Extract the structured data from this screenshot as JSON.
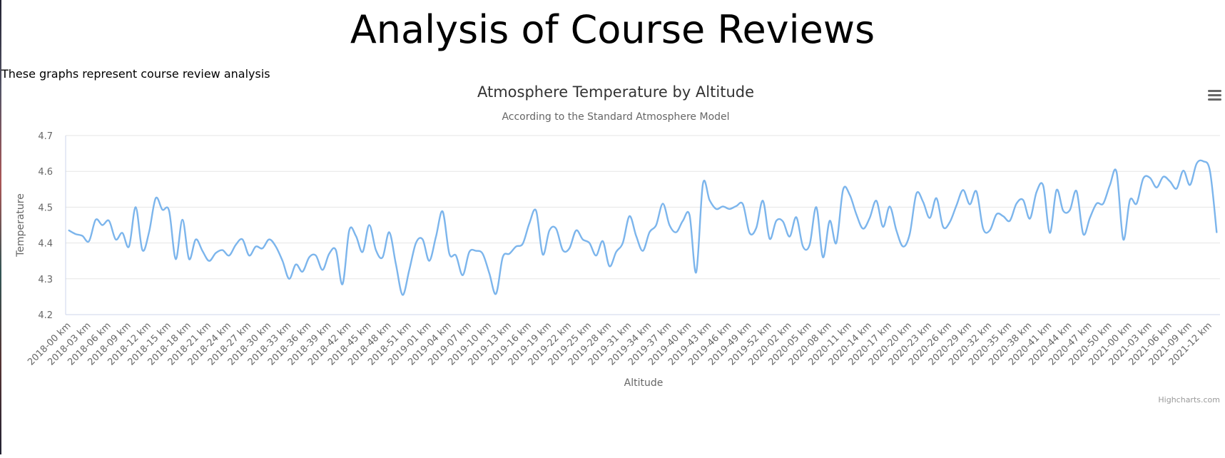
{
  "page": {
    "title": "Analysis of Course Reviews",
    "intro": "These graphs represent course review analysis"
  },
  "menu_icon": "hamburger-menu-icon",
  "credits": "Highcharts.com",
  "colors": {
    "series": "#7cb5ec",
    "grid": "#e6e6e6",
    "axis": "#ccd6eb"
  },
  "chart_data": {
    "type": "line",
    "title": "Atmosphere Temperature by Altitude",
    "subtitle": "According to the Standard Atmosphere Model",
    "xlabel": "Altitude",
    "ylabel": "Temperature",
    "ylim": [
      4.2,
      4.7
    ],
    "yticks": [
      "4.2",
      "4.3",
      "4.4",
      "4.5",
      "4.6",
      "4.7"
    ],
    "grid": true,
    "legend": "none",
    "categories": [
      "2018-00 km",
      "2018-01 km",
      "2018-02 km",
      "2018-03 km",
      "2018-04 km",
      "2018-05 km",
      "2018-06 km",
      "2018-07 km",
      "2018-08 km",
      "2018-09 km",
      "2018-10 km",
      "2018-11 km",
      "2018-12 km",
      "2018-13 km",
      "2018-14 km",
      "2018-15 km",
      "2018-16 km",
      "2018-17 km",
      "2018-18 km",
      "2018-19 km",
      "2018-20 km",
      "2018-21 km",
      "2018-22 km",
      "2018-23 km",
      "2018-24 km",
      "2018-25 km",
      "2018-26 km",
      "2018-27 km",
      "2018-28 km",
      "2018-29 km",
      "2018-30 km",
      "2018-31 km",
      "2018-32 km",
      "2018-33 km",
      "2018-34 km",
      "2018-35 km",
      "2018-36 km",
      "2018-37 km",
      "2018-38 km",
      "2018-39 km",
      "2018-40 km",
      "2018-41 km",
      "2018-42 km",
      "2018-43 km",
      "2018-44 km",
      "2018-45 km",
      "2018-46 km",
      "2018-47 km",
      "2018-48 km",
      "2018-49 km",
      "2018-50 km",
      "2018-51 km",
      "2018-52 km",
      "2019-00 km",
      "2019-01 km",
      "2019-02 km",
      "2019-03 km",
      "2019-04 km",
      "2019-05 km",
      "2019-06 km",
      "2019-07 km",
      "2019-08 km",
      "2019-09 km",
      "2019-10 km",
      "2019-11 km",
      "2019-12 km",
      "2019-13 km",
      "2019-14 km",
      "2019-15 km",
      "2019-16 km",
      "2019-17 km",
      "2019-18 km",
      "2019-19 km",
      "2019-20 km",
      "2019-21 km",
      "2019-22 km",
      "2019-23 km",
      "2019-24 km",
      "2019-25 km",
      "2019-26 km",
      "2019-27 km",
      "2019-28 km",
      "2019-29 km",
      "2019-30 km",
      "2019-31 km",
      "2019-32 km",
      "2019-33 km",
      "2019-34 km",
      "2019-35 km",
      "2019-36 km",
      "2019-37 km",
      "2019-38 km",
      "2019-39 km",
      "2019-40 km",
      "2019-41 km",
      "2019-42 km",
      "2019-43 km",
      "2019-44 km",
      "2019-45 km",
      "2019-46 km",
      "2019-47 km",
      "2019-48 km",
      "2019-49 km",
      "2019-50 km",
      "2019-51 km",
      "2019-52 km",
      "2020-00 km",
      "2020-01 km",
      "2020-02 km",
      "2020-03 km",
      "2020-04 km",
      "2020-05 km",
      "2020-06 km",
      "2020-07 km",
      "2020-08 km",
      "2020-09 km",
      "2020-10 km",
      "2020-11 km",
      "2020-12 km",
      "2020-13 km",
      "2020-14 km",
      "2020-15 km",
      "2020-16 km",
      "2020-17 km",
      "2020-18 km",
      "2020-19 km",
      "2020-20 km",
      "2020-21 km",
      "2020-22 km",
      "2020-23 km",
      "2020-24 km",
      "2020-25 km",
      "2020-26 km",
      "2020-27 km",
      "2020-28 km",
      "2020-29 km",
      "2020-30 km",
      "2020-31 km",
      "2020-32 km",
      "2020-33 km",
      "2020-34 km",
      "2020-35 km",
      "2020-36 km",
      "2020-37 km",
      "2020-38 km",
      "2020-39 km",
      "2020-40 km",
      "2020-41 km",
      "2020-42 km",
      "2020-43 km",
      "2020-44 km",
      "2020-45 km",
      "2020-46 km",
      "2020-47 km",
      "2020-48 km",
      "2020-49 km",
      "2020-50 km",
      "2020-51 km",
      "2020-52 km",
      "2021-00 km",
      "2021-01 km",
      "2021-02 km",
      "2021-03 km",
      "2021-04 km",
      "2021-05 km",
      "2021-06 km",
      "2021-07 km",
      "2021-08 km",
      "2021-09 km",
      "2021-10 km",
      "2021-11 km",
      "2021-12 km",
      "2021-13 km"
    ],
    "tick_every": 3,
    "values": [
      4.435,
      4.425,
      4.42,
      4.405,
      4.465,
      4.45,
      4.462,
      4.41,
      4.428,
      4.39,
      4.5,
      4.38,
      4.43,
      4.525,
      4.493,
      4.49,
      4.355,
      4.465,
      4.355,
      4.41,
      4.378,
      4.35,
      4.372,
      4.38,
      4.365,
      4.395,
      4.41,
      4.365,
      4.39,
      4.385,
      4.41,
      4.39,
      4.35,
      4.3,
      4.34,
      4.32,
      4.36,
      4.365,
      4.325,
      4.37,
      4.38,
      4.285,
      4.435,
      4.42,
      4.375,
      4.45,
      4.38,
      4.36,
      4.43,
      4.34,
      4.255,
      4.325,
      4.4,
      4.41,
      4.35,
      4.418,
      4.488,
      4.37,
      4.365,
      4.31,
      4.375,
      4.378,
      4.37,
      4.315,
      4.258,
      4.36,
      4.37,
      4.39,
      4.398,
      4.455,
      4.49,
      4.368,
      4.435,
      4.44,
      4.38,
      4.385,
      4.435,
      4.41,
      4.4,
      4.365,
      4.405,
      4.335,
      4.375,
      4.4,
      4.475,
      4.42,
      4.378,
      4.43,
      4.45,
      4.51,
      4.45,
      4.43,
      4.462,
      4.478,
      4.318,
      4.565,
      4.52,
      4.495,
      4.502,
      4.495,
      4.503,
      4.508,
      4.428,
      4.442,
      4.518,
      4.412,
      4.462,
      4.46,
      4.418,
      4.472,
      4.39,
      4.395,
      4.5,
      4.36,
      4.462,
      4.4,
      4.548,
      4.535,
      4.48,
      4.44,
      4.47,
      4.518,
      4.445,
      4.502,
      4.435,
      4.39,
      4.425,
      4.538,
      4.515,
      4.47,
      4.525,
      4.445,
      4.458,
      4.505,
      4.548,
      4.508,
      4.544,
      4.44,
      4.435,
      4.48,
      4.475,
      4.462,
      4.51,
      4.52,
      4.468,
      4.542,
      4.56,
      4.428,
      4.548,
      4.49,
      4.492,
      4.545,
      4.425,
      4.47,
      4.51,
      4.51,
      4.562,
      4.598,
      4.41,
      4.52,
      4.51,
      4.58,
      4.582,
      4.555,
      4.585,
      4.572,
      4.552,
      4.602,
      4.562,
      4.622,
      4.628,
      4.6,
      4.43
    ]
  }
}
